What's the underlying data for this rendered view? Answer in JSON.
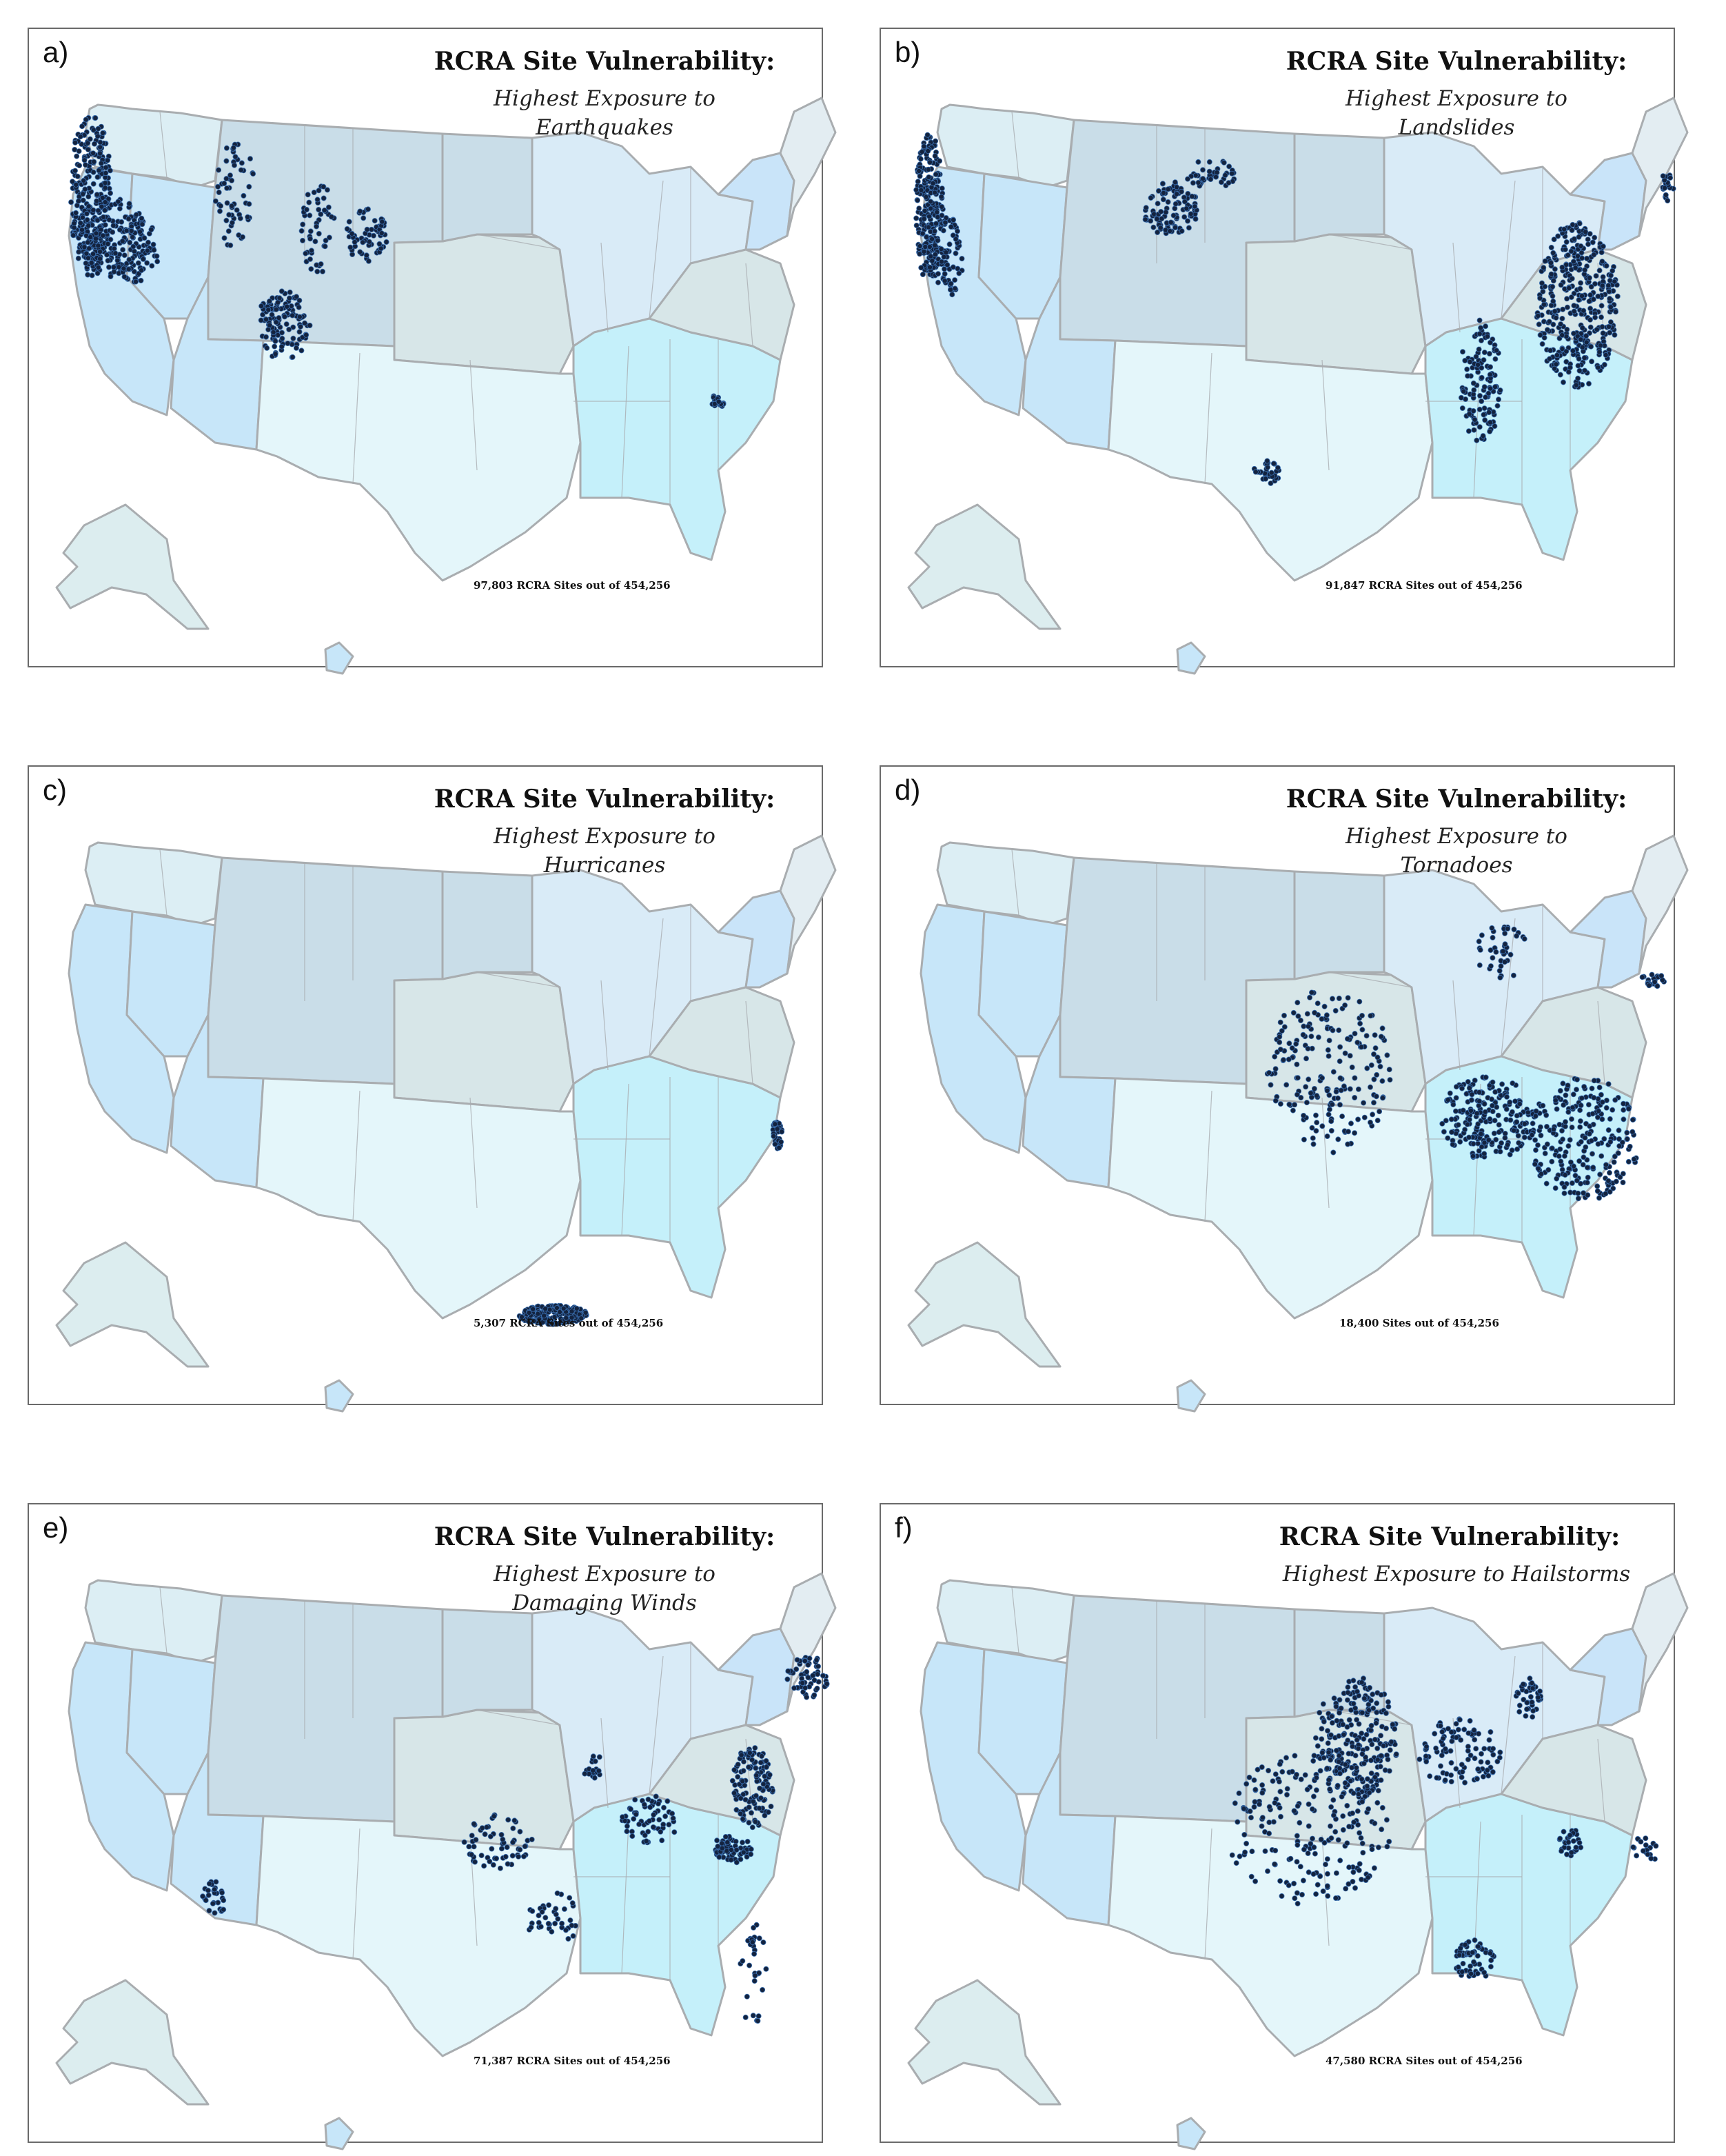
{
  "colors": {
    "border": "#a9adb0",
    "site_dot": "#13233f",
    "site_dot_edge": "#3a6fb0",
    "pacific": "#dceef4",
    "mountain": "#c9dde8",
    "plains": "#d7e6e8",
    "midwest": "#d9ebf7",
    "south": "#e4f6fa",
    "southeast": "#c5f0fa",
    "southwest": "#c7e6f9",
    "northeast": "#e3edf2",
    "nystate": "#c9e4f9",
    "alaska": "#dcedef",
    "hawaii": "#c7e6f9"
  },
  "panels": [
    {
      "letter": "a)",
      "title": "RCRA Site Vulnerability:",
      "subtitle_lines": [
        "Highest Exposure to",
        "Earthquakes"
      ],
      "footnote": "97,803 RCRA Sites out of 454,256",
      "hazard": "earthquakes"
    },
    {
      "letter": "b)",
      "title": "RCRA Site Vulnerability:",
      "subtitle_lines": [
        "Highest Exposure to",
        "Landslides"
      ],
      "footnote": "91,847 RCRA Sites out of 454,256",
      "hazard": "landslides"
    },
    {
      "letter": "c)",
      "title": "RCRA Site Vulnerability:",
      "subtitle_lines": [
        "Highest Exposure to",
        "Hurricanes"
      ],
      "footnote": "5,307 RCRA Sites out of 454,256",
      "hazard": "hurricanes"
    },
    {
      "letter": "d)",
      "title": "RCRA Site Vulnerability:",
      "subtitle_lines": [
        "Highest Exposure to",
        "Tornadoes"
      ],
      "footnote": "18,400 Sites out of 454,256",
      "hazard": "tornadoes"
    },
    {
      "letter": "e)",
      "title": "RCRA Site Vulnerability:",
      "subtitle_lines": [
        "Highest Exposure to",
        "Damaging Winds"
      ],
      "footnote": "71,387 RCRA Sites out of 454,256",
      "hazard": "damaging-winds"
    },
    {
      "letter": "f)",
      "title": "RCRA Site Vulnerability:",
      "subtitle_lines": [
        "Highest Exposure to Hailstorms"
      ],
      "footnote": "47,580 RCRA Sites out of 454,256",
      "hazard": "hailstorms"
    }
  ]
}
